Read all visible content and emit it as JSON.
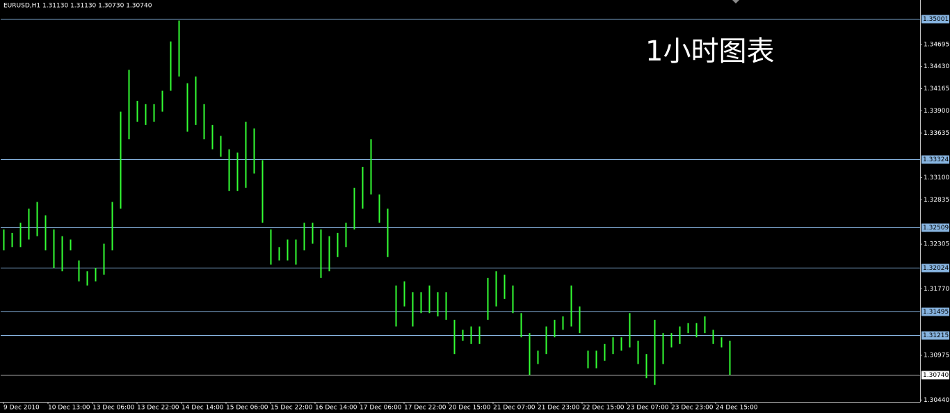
{
  "chart_data": {
    "type": "range_bar",
    "title": "EURUSD,H1  1.31130 1.31130 1.30730 1.30740",
    "annotation": "1小时图表",
    "color": "#33ff33",
    "background": "#000000",
    "x": [
      0,
      3,
      6,
      9,
      12,
      15,
      18,
      21,
      24,
      27,
      30,
      33,
      36,
      39,
      42,
      45,
      48,
      51,
      54,
      57,
      60,
      63,
      66,
      69,
      72,
      75,
      78,
      81,
      84,
      87,
      90,
      93,
      96,
      99,
      102,
      105,
      108,
      111,
      114,
      117,
      120,
      123,
      126,
      129,
      132,
      135,
      138,
      141,
      144,
      147,
      150,
      153,
      156,
      159,
      162,
      165,
      168,
      171,
      174,
      177,
      180,
      183,
      186,
      189,
      192,
      195,
      198,
      201,
      204,
      207,
      210,
      213,
      216,
      219,
      222,
      225,
      228,
      231,
      234,
      237,
      240,
      243,
      246,
      249,
      252,
      255,
      258,
      261
    ],
    "high": [
      1.3248,
      1.3244,
      1.3256,
      1.3273,
      1.3281,
      1.3265,
      1.3248,
      1.324,
      1.3236,
      1.3211,
      1.3198,
      1.3202,
      1.3231,
      1.3281,
      1.3389,
      1.3439,
      1.3402,
      1.3398,
      1.3398,
      1.3414,
      1.3473,
      1.3498,
      1.3423,
      1.3431,
      1.3398,
      1.3373,
      1.336,
      1.3344,
      1.334,
      1.3377,
      1.3369,
      1.3331,
      1.3248,
      1.3227,
      1.3236,
      1.3236,
      1.3256,
      1.3256,
      1.3248,
      1.324,
      1.3244,
      1.3256,
      1.3298,
      1.3323,
      1.3356,
      1.329,
      1.3273,
      1.3181,
      1.3186,
      1.3173,
      1.3173,
      1.3181,
      1.3173,
      1.3173,
      1.314,
      1.3128,
      1.3132,
      1.3132,
      1.319,
      1.3198,
      1.3194,
      1.3181,
      1.3148,
      1.3124,
      1.3103,
      1.3132,
      1.314,
      1.3144,
      1.3181,
      1.3156,
      1.3103,
      1.3103,
      1.3111,
      1.3119,
      1.3119,
      1.3148,
      1.3115,
      1.3099,
      1.314,
      1.3124,
      1.3124,
      1.3132,
      1.3136,
      1.3136,
      1.3144,
      1.3128,
      1.3119,
      1.3115
    ],
    "low": [
      1.3223,
      1.3227,
      1.3227,
      1.3236,
      1.324,
      1.3223,
      1.3202,
      1.3198,
      1.3223,
      1.3186,
      1.3181,
      1.3186,
      1.3194,
      1.3223,
      1.3273,
      1.3356,
      1.3377,
      1.3373,
      1.3377,
      1.3389,
      1.3414,
      1.3431,
      1.3365,
      1.3373,
      1.3356,
      1.3344,
      1.3335,
      1.3294,
      1.3294,
      1.3298,
      1.3315,
      1.3256,
      1.3206,
      1.3211,
      1.3211,
      1.3206,
      1.3223,
      1.3231,
      1.319,
      1.3198,
      1.3215,
      1.3227,
      1.3248,
      1.3273,
      1.329,
      1.3256,
      1.3215,
      1.3132,
      1.3156,
      1.3132,
      1.3148,
      1.3148,
      1.3144,
      1.314,
      1.3099,
      1.3115,
      1.3111,
      1.3111,
      1.314,
      1.3156,
      1.3165,
      1.3148,
      1.3119,
      1.3074,
      1.3087,
      1.3099,
      1.3119,
      1.3128,
      1.3132,
      1.3124,
      1.3082,
      1.3082,
      1.3091,
      1.3099,
      1.3103,
      1.3107,
      1.3087,
      1.307,
      1.3062,
      1.3087,
      1.3107,
      1.3111,
      1.3124,
      1.3119,
      1.3124,
      1.3111,
      1.3107,
      1.3074
    ],
    "xlim": [
      -1,
      329.5
    ],
    "ylim": [
      1.30426,
      1.35226
    ],
    "xticks": [
      {
        "value": 0,
        "label": "9 Dec 2010"
      },
      {
        "value": 16,
        "label": "10 Dec 13:00"
      },
      {
        "value": 32,
        "label": "13 Dec 06:00"
      },
      {
        "value": 48,
        "label": "13 Dec 22:00"
      },
      {
        "value": 64,
        "label": "14 Dec 14:00"
      },
      {
        "value": 80,
        "label": "15 Dec 06:00"
      },
      {
        "value": 96,
        "label": "15 Dec 22:00"
      },
      {
        "value": 112,
        "label": "16 Dec 14:00"
      },
      {
        "value": 128,
        "label": "17 Dec 06:00"
      },
      {
        "value": 144,
        "label": "17 Dec 22:00"
      },
      {
        "value": 160,
        "label": "20 Dec 15:00"
      },
      {
        "value": 176,
        "label": "21 Dec 07:00"
      },
      {
        "value": 192,
        "label": "21 Dec 23:00"
      },
      {
        "value": 208,
        "label": "22 Dec 15:00"
      },
      {
        "value": 224,
        "label": "23 Dec 07:00"
      },
      {
        "value": 240,
        "label": "23 Dec 23:00"
      },
      {
        "value": 256,
        "label": "24 Dec 15:00"
      }
    ],
    "yticks": [
      1.34695,
      {
        "value": 1.3443,
        "label": "1.34430"
      },
      1.34165,
      {
        "value": 1.339,
        "label": "1.33900"
      },
      1.33635,
      {
        "value": 1.331,
        "label": "1.33100"
      },
      1.32835,
      1.32305,
      {
        "value": 1.3177,
        "label": "1.31770"
      },
      1.30975,
      {
        "value": 1.3044,
        "label": "1.30440"
      }
    ],
    "levels": [
      1.35001,
      1.33324,
      1.32509,
      1.32024,
      1.31495,
      1.31215
    ],
    "level_color": "#87b4e0",
    "current_price": {
      "value": 1.3074,
      "label": "1.30740"
    },
    "current_price_color": "#c0c0c0"
  }
}
